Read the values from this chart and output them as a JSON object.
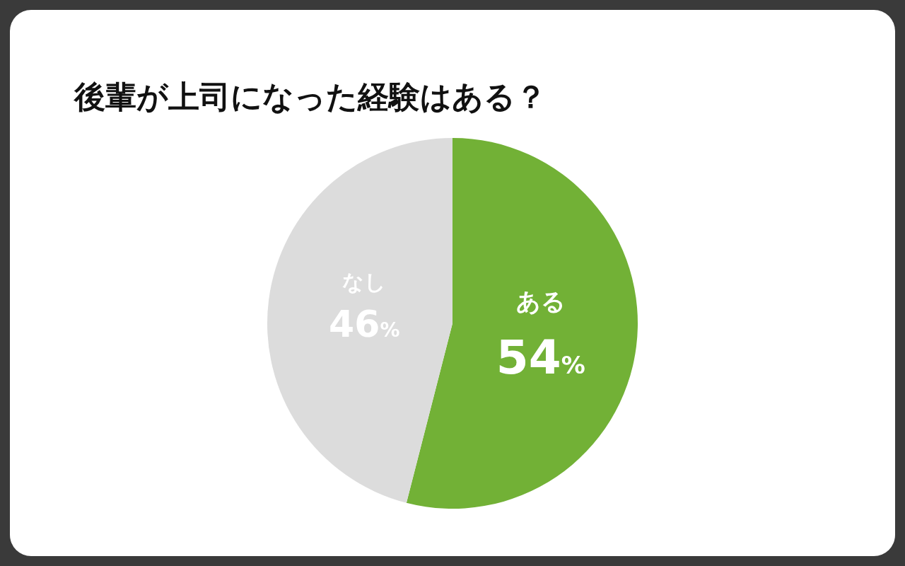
{
  "chart_data": {
    "type": "pie",
    "title": "後輩が上司になった経験はある？",
    "categories": [
      "ある",
      "なし"
    ],
    "values": [
      54,
      46
    ],
    "colors": [
      "#72b136",
      "#dcdcdc"
    ],
    "value_labels": [
      "54%",
      "46%"
    ]
  }
}
